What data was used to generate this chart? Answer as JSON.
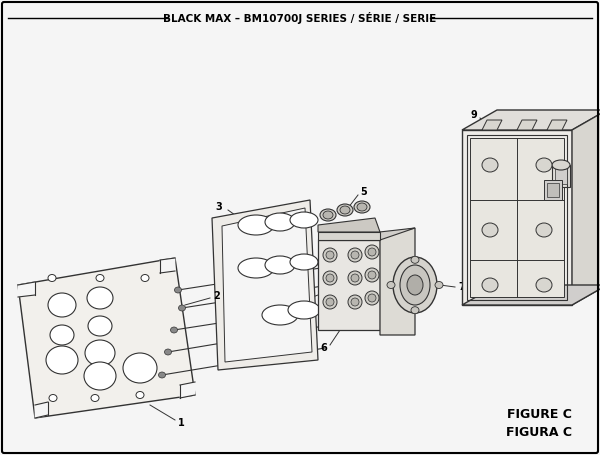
{
  "title": "BLACK MAX – BM10700J SERIES / SÉRIE / SERIE",
  "figure_label": "FIGURE C",
  "figura_label": "FIGURA C",
  "bg_color": "#f5f5f5",
  "border_color": "#000000",
  "line_color": "#333333",
  "fill_light": "#f0eeea",
  "fill_mid": "#e8e6e0",
  "fill_dark": "#d8d6d0"
}
